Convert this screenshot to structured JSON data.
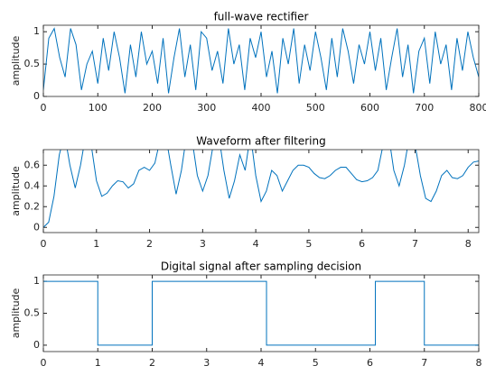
{
  "chart_data": [
    {
      "type": "line",
      "title": "full-wave rectifier",
      "ylabel": "amplitude",
      "color": "#0072bd",
      "x": [
        0,
        10,
        20,
        30,
        40,
        50,
        60,
        70,
        80,
        90,
        100,
        110,
        120,
        130,
        140,
        150,
        160,
        170,
        180,
        190,
        200,
        210,
        220,
        230,
        240,
        250,
        260,
        270,
        280,
        290,
        300,
        310,
        320,
        330,
        340,
        350,
        360,
        370,
        380,
        390,
        400,
        410,
        420,
        430,
        440,
        450,
        460,
        470,
        480,
        490,
        500,
        510,
        520,
        530,
        540,
        550,
        560,
        570,
        580,
        590,
        600,
        610,
        620,
        630,
        640,
        650,
        660,
        670,
        680,
        690,
        700,
        710,
        720,
        730,
        740,
        750,
        760,
        770,
        780,
        790,
        800
      ],
      "values": [
        0.1,
        0.9,
        1.05,
        0.6,
        0.3,
        1.05,
        0.8,
        0.1,
        0.5,
        0.7,
        0.2,
        0.9,
        0.4,
        1.0,
        0.6,
        0.05,
        0.8,
        0.3,
        1.0,
        0.5,
        0.7,
        0.2,
        0.9,
        0.05,
        0.6,
        1.05,
        0.3,
        0.8,
        0.1,
        1.0,
        0.9,
        0.4,
        0.7,
        0.2,
        1.05,
        0.5,
        0.8,
        0.1,
        0.9,
        0.6,
        1.0,
        0.3,
        0.7,
        0.05,
        0.9,
        0.5,
        1.05,
        0.2,
        0.8,
        0.4,
        1.0,
        0.6,
        0.1,
        0.9,
        0.3,
        1.05,
        0.7,
        0.2,
        0.8,
        0.5,
        1.0,
        0.4,
        0.9,
        0.1,
        0.6,
        1.05,
        0.3,
        0.8,
        0.05,
        0.7,
        0.9,
        0.2,
        1.0,
        0.5,
        0.8,
        0.1,
        0.9,
        0.4,
        1.0,
        0.6,
        0.3
      ],
      "xlim": [
        0,
        800
      ],
      "xticks": [
        0,
        100,
        200,
        300,
        400,
        500,
        600,
        700,
        800
      ],
      "ylim": [
        0,
        1.1
      ],
      "yticks": [
        0,
        0.5,
        1
      ]
    },
    {
      "type": "line",
      "title": "Waveform after filtering",
      "ylabel": "amplitude",
      "color": "#0072bd",
      "x": [
        0,
        0.1,
        0.2,
        0.3,
        0.4,
        0.5,
        0.6,
        0.7,
        0.8,
        0.9,
        1,
        1.1,
        1.2,
        1.3,
        1.4,
        1.5,
        1.6,
        1.7,
        1.8,
        1.9,
        2,
        2.1,
        2.2,
        2.3,
        2.4,
        2.5,
        2.6,
        2.7,
        2.8,
        2.9,
        3,
        3.1,
        3.2,
        3.3,
        3.4,
        3.5,
        3.6,
        3.7,
        3.8,
        3.9,
        4,
        4.1,
        4.2,
        4.3,
        4.4,
        4.5,
        4.6,
        4.7,
        4.8,
        4.9,
        5,
        5.1,
        5.2,
        5.3,
        5.4,
        5.5,
        5.6,
        5.7,
        5.8,
        5.9,
        6,
        6.1,
        6.2,
        6.3,
        6.4,
        6.5,
        6.6,
        6.7,
        6.8,
        6.9,
        7,
        7.1,
        7.2,
        7.3,
        7.4,
        7.5,
        7.6,
        7.7,
        7.8,
        7.9,
        8,
        8.1,
        8.2
      ],
      "values": [
        0,
        0.05,
        0.3,
        0.7,
        0.9,
        0.6,
        0.38,
        0.6,
        0.9,
        0.8,
        0.45,
        0.3,
        0.33,
        0.4,
        0.45,
        0.44,
        0.38,
        0.42,
        0.55,
        0.58,
        0.55,
        0.62,
        0.85,
        0.9,
        0.6,
        0.32,
        0.55,
        0.9,
        0.85,
        0.5,
        0.35,
        0.5,
        0.8,
        0.9,
        0.55,
        0.28,
        0.45,
        0.7,
        0.55,
        0.9,
        0.5,
        0.25,
        0.35,
        0.55,
        0.5,
        0.35,
        0.45,
        0.55,
        0.6,
        0.6,
        0.58,
        0.52,
        0.48,
        0.47,
        0.5,
        0.55,
        0.58,
        0.58,
        0.52,
        0.46,
        0.44,
        0.45,
        0.48,
        0.55,
        0.8,
        0.9,
        0.55,
        0.4,
        0.6,
        0.9,
        0.8,
        0.5,
        0.28,
        0.25,
        0.35,
        0.5,
        0.55,
        0.48,
        0.47,
        0.5,
        0.58,
        0.63,
        0.64
      ],
      "xlim": [
        0,
        8.2
      ],
      "xticks": [
        0,
        1,
        2,
        3,
        4,
        5,
        6,
        7,
        8
      ],
      "ylim": [
        -0.05,
        0.75
      ],
      "yticks": [
        0,
        0.2,
        0.4,
        0.6
      ]
    },
    {
      "type": "line",
      "title": "Digital signal after sampling decision",
      "ylabel": "amplitude",
      "color": "#0072bd",
      "x": [
        0,
        1,
        1,
        2,
        2,
        4.1,
        4.1,
        6.1,
        6.1,
        7,
        7,
        8
      ],
      "values": [
        1,
        1,
        0,
        0,
        1,
        1,
        0,
        0,
        1,
        1,
        0,
        0
      ],
      "xlim": [
        0,
        8
      ],
      "xticks": [
        0,
        1,
        2,
        3,
        4,
        5,
        6,
        7,
        8
      ],
      "ylim": [
        -0.1,
        1.1
      ],
      "yticks": [
        0,
        0.5,
        1
      ]
    }
  ]
}
